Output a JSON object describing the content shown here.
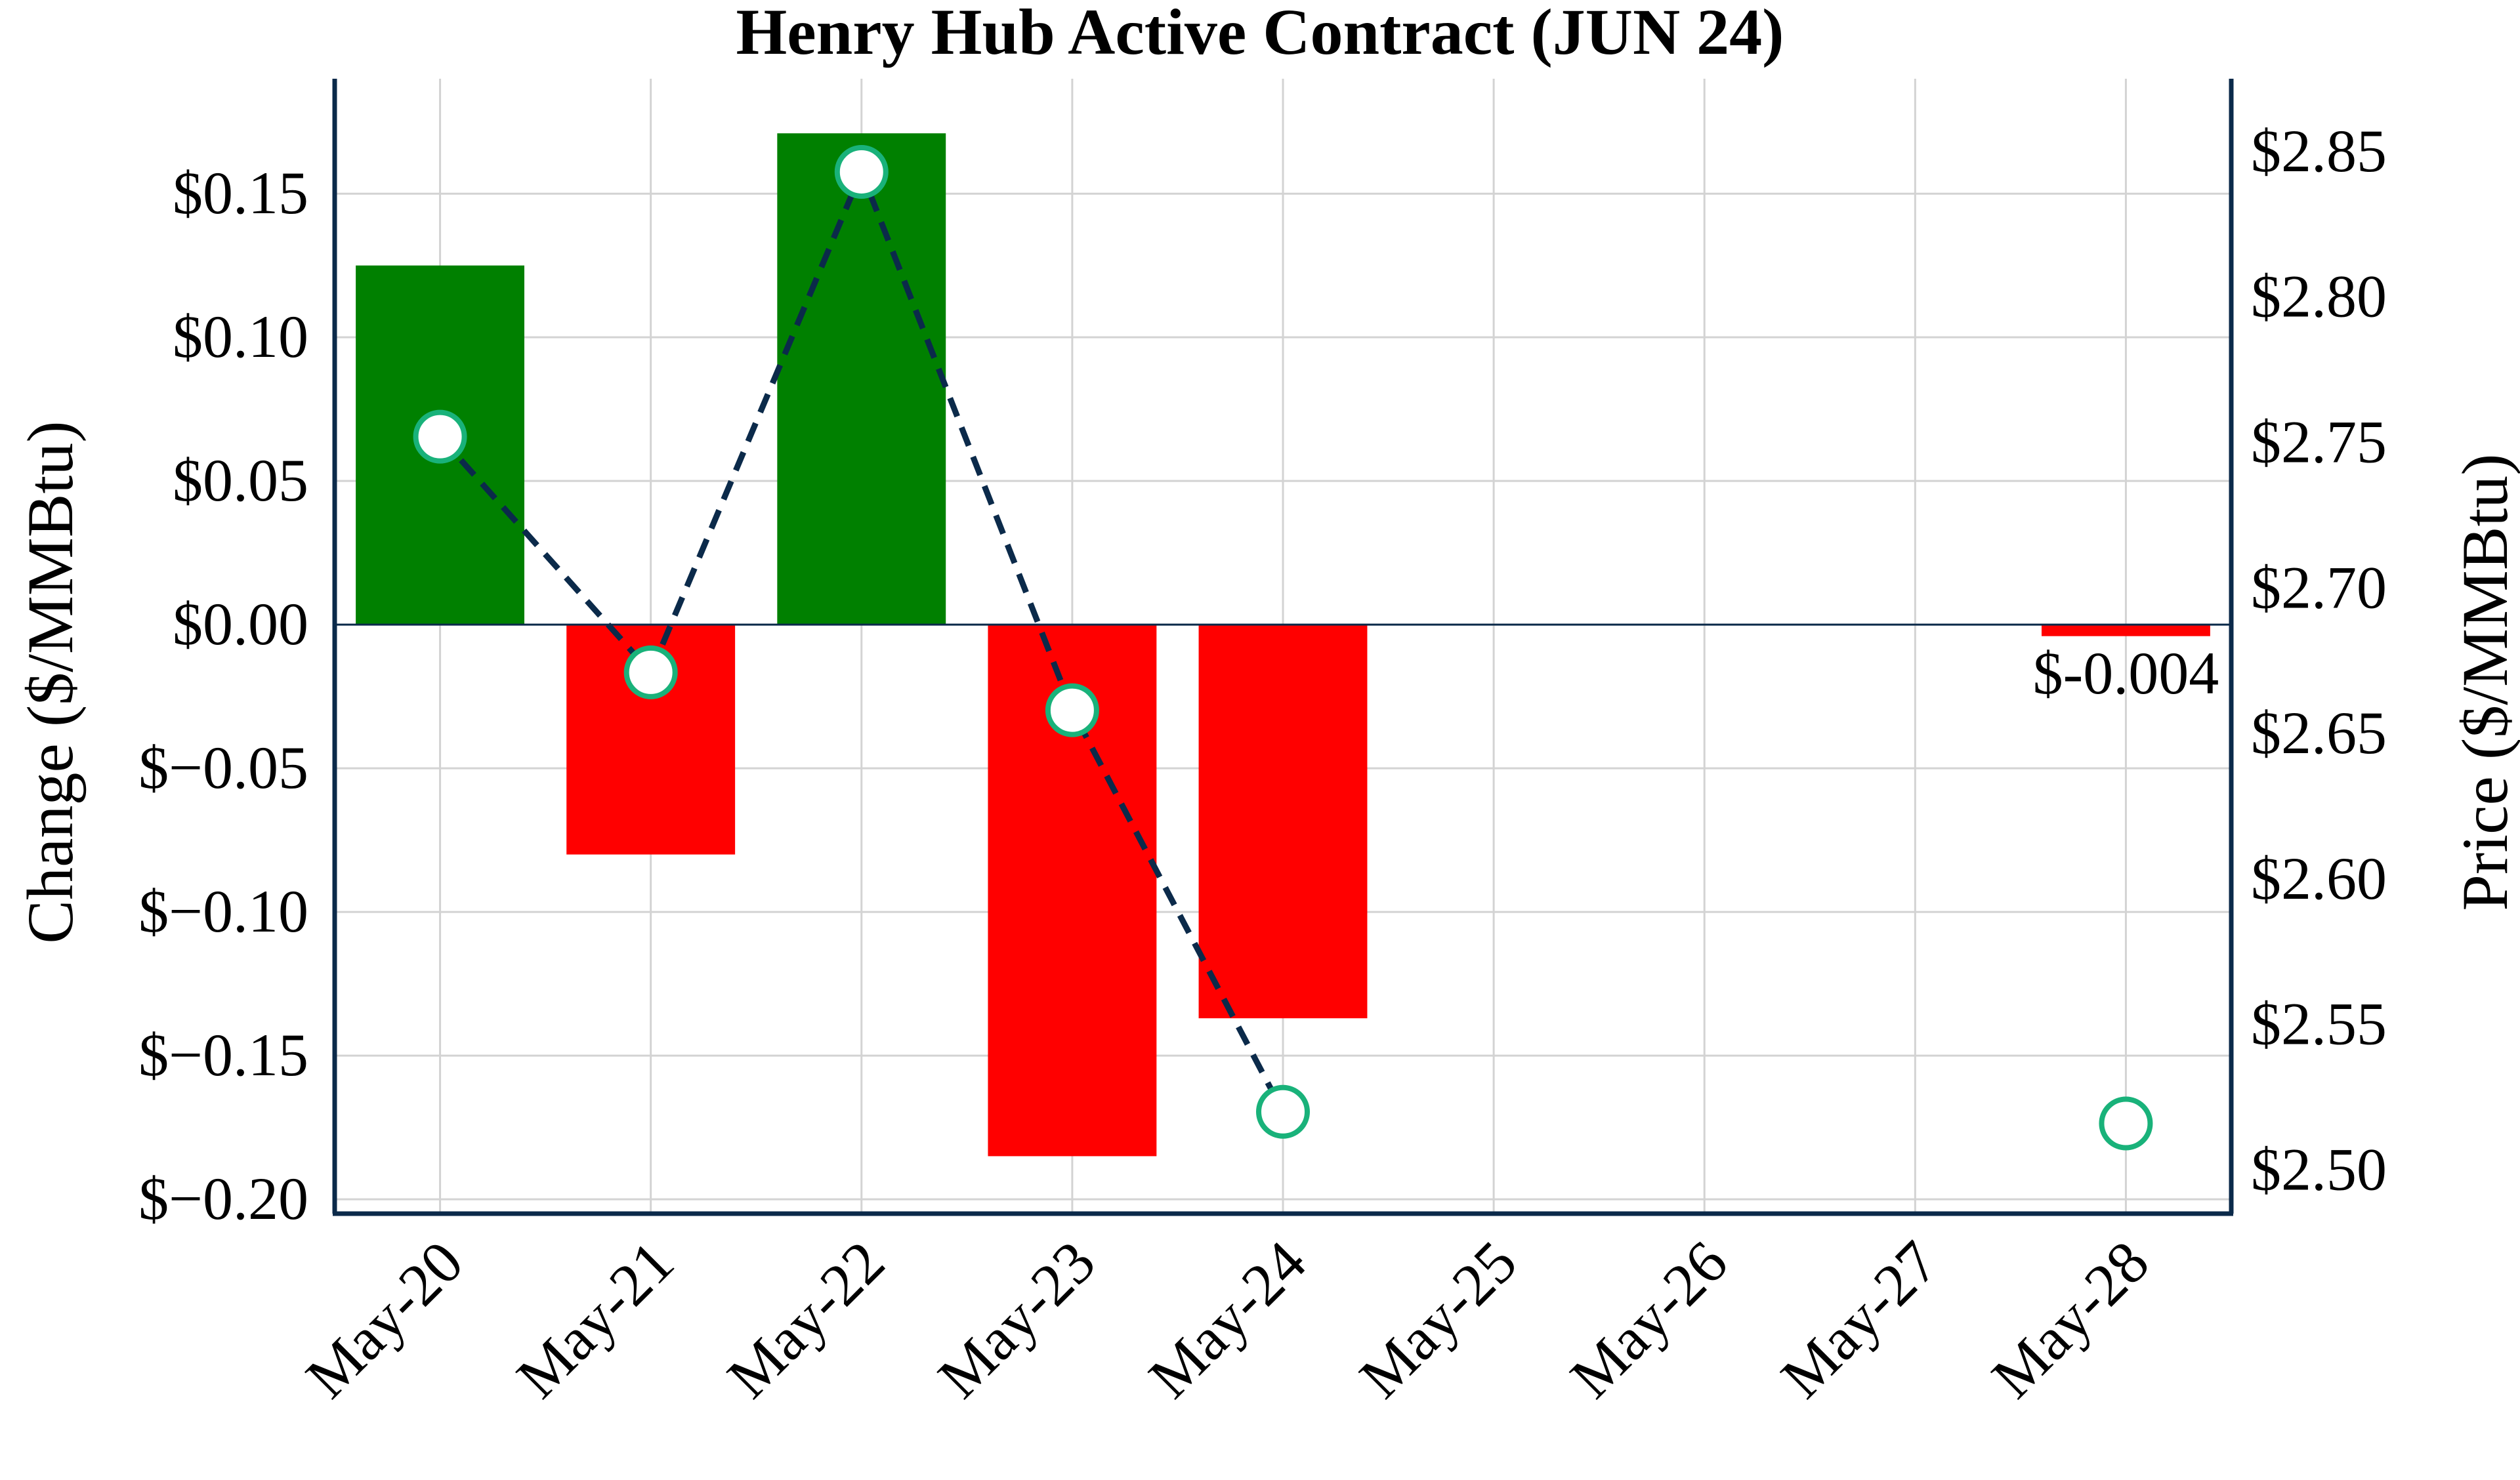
{
  "chart_data": {
    "type": "bar",
    "title": "Henry Hub Active Contract (JUN 24)",
    "categories": [
      "May-20",
      "May-21",
      "May-22",
      "May-23",
      "May-24",
      "May-25",
      "May-26",
      "May-27",
      "May-28"
    ],
    "series": [
      {
        "kind": "bar",
        "axis": "left",
        "values": [
          0.125,
          -0.08,
          0.171,
          -0.185,
          -0.137,
          null,
          null,
          null,
          -0.004
        ]
      },
      {
        "kind": "line",
        "axis": "right",
        "values": [
          2.752,
          2.671,
          2.843,
          2.658,
          2.52,
          null,
          null,
          null,
          2.516
        ],
        "line_style": "dashed",
        "line_connects_through": 4
      }
    ],
    "y_left": {
      "label": "Change ($/MMBtu)",
      "ylim": [
        -0.205,
        0.19
      ],
      "ticks": [
        -0.2,
        -0.15,
        -0.1,
        -0.05,
        0.0,
        0.05,
        0.1,
        0.15
      ],
      "tick_labels": [
        "$−0.20",
        "$−0.15",
        "$−0.10",
        "$−0.05",
        "$0.00",
        "$0.05",
        "$0.10",
        "$0.15"
      ]
    },
    "y_right": {
      "label": "Price ($/MMBtu)",
      "ylim": [
        2.485,
        2.875
      ],
      "ticks": [
        2.5,
        2.55,
        2.6,
        2.65,
        2.7,
        2.75,
        2.8,
        2.85
      ],
      "tick_labels": [
        "$2.50",
        "$2.55",
        "$2.60",
        "$2.65",
        "$2.70",
        "$2.75",
        "$2.80",
        "$2.85"
      ]
    },
    "annotations": [
      {
        "category": "May-28",
        "text": "$-0.004"
      }
    ],
    "grid": true,
    "colors": {
      "positive_bar": "#008000",
      "negative_bar": "#ff0000",
      "line": "#0b2a4a",
      "marker_edge": "#19b27a",
      "axis": "#0b2a4a",
      "grid": "#d3d3d3"
    }
  }
}
